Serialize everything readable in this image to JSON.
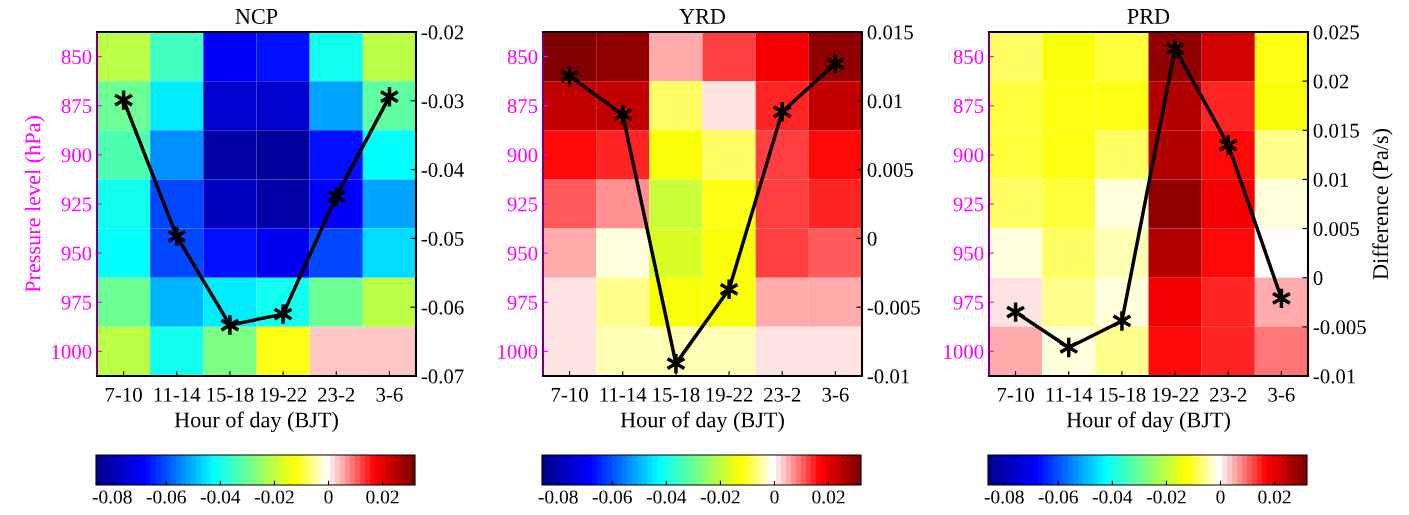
{
  "chart_data": [
    {
      "type": "heatmap",
      "title": "NCP",
      "xlabel": "Hour of day (BJT)",
      "ylabel": "Pressure level (hPa)",
      "categories": [
        "7-10",
        "11-14",
        "15-18",
        "19-22",
        "23-2",
        "3-6"
      ],
      "y_categories": [
        "850",
        "875",
        "900",
        "925",
        "950",
        "975",
        "1000"
      ],
      "cells": [
        [
          -0.02,
          -0.036,
          -0.068,
          -0.067,
          -0.04,
          -0.02
        ],
        [
          -0.03,
          -0.045,
          -0.076,
          -0.076,
          -0.052,
          -0.031
        ],
        [
          -0.034,
          -0.054,
          -0.081,
          -0.083,
          -0.066,
          -0.043
        ],
        [
          -0.041,
          -0.062,
          -0.078,
          -0.082,
          -0.068,
          -0.052
        ],
        [
          -0.043,
          -0.062,
          -0.066,
          -0.07,
          -0.062,
          -0.047
        ],
        [
          -0.03,
          -0.05,
          -0.045,
          -0.04,
          -0.03,
          -0.02
        ],
        [
          -0.02,
          -0.041,
          -0.028,
          -0.012,
          0.004,
          0.004
        ]
      ],
      "clim": [
        -0.086,
        0.032
      ],
      "cticks": [
        -0.08,
        -0.06,
        -0.04,
        -0.02,
        0,
        0.02
      ],
      "y2lim": [
        -0.07,
        -0.02
      ],
      "y2ticks": [
        -0.07,
        -0.06,
        -0.05,
        -0.04,
        -0.03,
        -0.02
      ],
      "marker": "cross",
      "series": [
        {
          "type": "line",
          "axis": "y2",
          "color": "#000000",
          "values": [
            -0.0299,
            -0.0497,
            -0.0626,
            -0.061,
            -0.0439,
            -0.0294
          ]
        }
      ]
    },
    {
      "type": "heatmap",
      "title": "YRD",
      "xlabel": "Hour of day (BJT)",
      "categories": [
        "7-10",
        "11-14",
        "15-18",
        "19-22",
        "23-2",
        "3-6"
      ],
      "y_categories": [
        "850",
        "875",
        "900",
        "925",
        "950",
        "975",
        "1000"
      ],
      "cells": [
        [
          0.031,
          0.029,
          0.005,
          0.012,
          0.018,
          0.029
        ],
        [
          0.023,
          0.023,
          -0.008,
          0.002,
          0.015,
          0.023
        ],
        [
          0.017,
          0.015,
          -0.013,
          -0.008,
          0.013,
          0.017
        ],
        [
          0.01,
          0.008,
          -0.019,
          -0.012,
          0.012,
          0.014
        ],
        [
          0.005,
          -0.002,
          -0.017,
          -0.013,
          0.012,
          0.01
        ],
        [
          0.002,
          -0.006,
          -0.013,
          -0.013,
          0.005,
          0.005
        ],
        [
          0.002,
          -0.004,
          -0.004,
          -0.004,
          0.002,
          0.002
        ]
      ],
      "clim": [
        -0.086,
        0.032
      ],
      "cticks": [
        -0.08,
        -0.06,
        -0.04,
        -0.02,
        0,
        0.02
      ],
      "y2lim": [
        -0.01,
        0.015
      ],
      "y2ticks": [
        -0.01,
        -0.005,
        0,
        0.005,
        0.01,
        0.015
      ],
      "marker": "cross",
      "series": [
        {
          "type": "line",
          "axis": "y2",
          "color": "#000000",
          "values": [
            0.0118,
            0.009,
            -0.0091,
            -0.0037,
            0.0092,
            0.0127
          ]
        }
      ]
    },
    {
      "type": "heatmap",
      "title": "PRD",
      "xlabel": "Hour of day (BJT)",
      "y2label": "Difference (Pa/s)",
      "categories": [
        "7-10",
        "11-14",
        "15-18",
        "19-22",
        "23-2",
        "3-6"
      ],
      "y_categories": [
        "850",
        "875",
        "900",
        "925",
        "950",
        "975",
        "1000"
      ],
      "cells": [
        [
          -0.008,
          -0.013,
          -0.01,
          0.029,
          0.021,
          -0.012
        ],
        [
          -0.01,
          -0.012,
          -0.012,
          0.025,
          0.015,
          -0.013
        ],
        [
          -0.01,
          -0.011,
          -0.007,
          0.026,
          0.016,
          -0.005
        ],
        [
          -0.008,
          -0.01,
          -0.002,
          0.029,
          0.018,
          -0.003
        ],
        [
          -0.002,
          -0.008,
          -0.004,
          0.025,
          0.016,
          0
        ],
        [
          0.002,
          -0.005,
          -0.003,
          0.019,
          0.014,
          0.005
        ],
        [
          0.005,
          -0.003,
          -0.006,
          0.017,
          0.014,
          0.009
        ]
      ],
      "clim": [
        -0.086,
        0.032
      ],
      "cticks": [
        -0.08,
        -0.06,
        -0.04,
        -0.02,
        0,
        0.02
      ],
      "y2lim": [
        -0.01,
        0.025
      ],
      "y2ticks": [
        -0.01,
        -0.005,
        0,
        0.005,
        0.01,
        0.015,
        0.02,
        0.025
      ],
      "marker": "cross",
      "series": [
        {
          "type": "line",
          "axis": "y2",
          "color": "#000000",
          "values": [
            -0.0035,
            -0.0071,
            -0.0044,
            0.0233,
            0.0135,
            -0.0021
          ]
        }
      ]
    }
  ]
}
